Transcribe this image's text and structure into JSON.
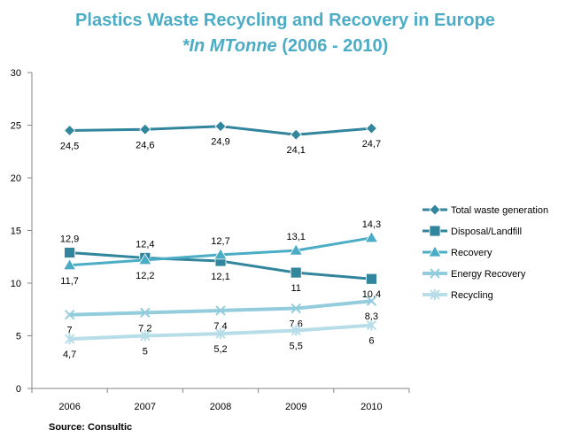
{
  "chart_data": {
    "type": "line",
    "title": "Plastics Waste Recycling and Recovery in Europe",
    "subtitle_italic": "*In MTonne",
    "subtitle_rest": " (2006 - 2010)",
    "source": "Source: Consultic",
    "x": [
      "2006",
      "2007",
      "2008",
      "2009",
      "2010"
    ],
    "ylim": [
      0,
      30
    ],
    "yticks": [
      0,
      5,
      10,
      15,
      20,
      25,
      30
    ],
    "grid": false,
    "legend_position": "right",
    "series": [
      {
        "name": "Total waste  generation",
        "marker": "diamond",
        "color": "#31859c",
        "values": [
          24.5,
          24.6,
          24.9,
          24.1,
          24.7
        ],
        "labels": [
          "24,5",
          "24,6",
          "24,9",
          "24,1",
          "24,7"
        ],
        "label_pos": "below"
      },
      {
        "name": "Disposal/Landfill",
        "marker": "square",
        "color": "#31859c",
        "values": [
          12.9,
          12.4,
          12.1,
          11,
          10.4
        ],
        "labels": [
          "12,9",
          "12,4",
          "12,1",
          "11",
          "10,4"
        ],
        "label_pos": [
          "above",
          "above",
          "below",
          "below",
          "below"
        ]
      },
      {
        "name": "Recovery",
        "marker": "triangle",
        "color": "#4bacc6",
        "values": [
          11.7,
          12.2,
          12.7,
          13.1,
          14.3
        ],
        "labels": [
          "11,7",
          "12,2",
          "12,7",
          "13,1",
          "14,3"
        ],
        "label_pos": [
          "below",
          "below",
          "above",
          "above",
          "above"
        ]
      },
      {
        "name": "Energy Recovery",
        "marker": "x",
        "color": "#93cddd",
        "values": [
          7,
          7.2,
          7.4,
          7.6,
          8.3
        ],
        "labels": [
          "7",
          "7,2",
          "7,4",
          "7,6",
          "8,3"
        ],
        "label_pos": "below"
      },
      {
        "name": "Recycling",
        "marker": "star",
        "color": "#b7dee8",
        "values": [
          4.7,
          5,
          5.2,
          5.5,
          6
        ],
        "labels": [
          "4,7",
          "5",
          "5,2",
          "5,5",
          "6"
        ],
        "label_pos": "below"
      }
    ]
  }
}
